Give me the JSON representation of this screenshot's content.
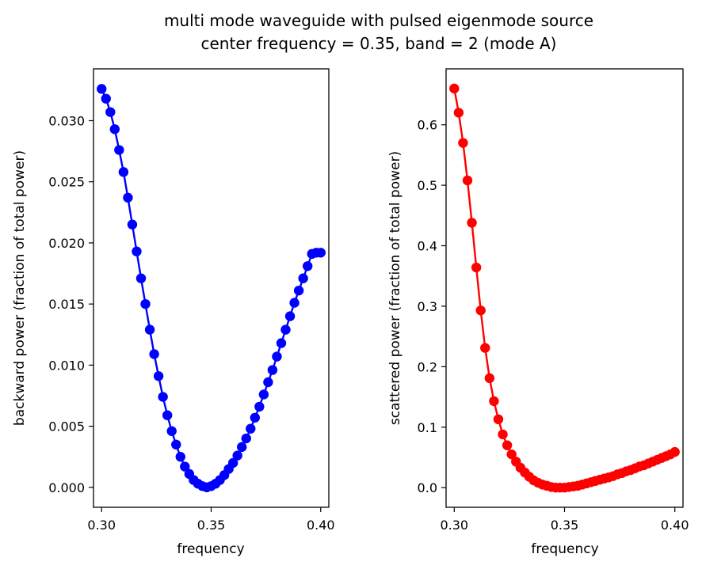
{
  "figure": {
    "title_line1": "multi mode waveguide with pulsed eigenmode source",
    "title_line2": "center frequency = 0.35, band = 2 (mode A)"
  },
  "chart_data": [
    {
      "type": "line",
      "xlabel": "frequency",
      "ylabel": "backward power (fraction of total power)",
      "xlim": [
        0.2963,
        0.4037
      ],
      "ylim": [
        -0.00163,
        0.03424
      ],
      "xticks": [
        "0.30",
        "0.35",
        "0.40"
      ],
      "xtick_values": [
        0.3,
        0.35,
        0.4
      ],
      "yticks": [
        "0.000",
        "0.005",
        "0.010",
        "0.015",
        "0.020",
        "0.025",
        "0.030"
      ],
      "ytick_values": [
        0,
        0.005,
        0.01,
        0.015,
        0.02,
        0.025,
        0.03
      ],
      "grid": false,
      "marker": "circle",
      "color": "#0000ff",
      "x": [
        0.3,
        0.302,
        0.304,
        0.306,
        0.308,
        0.31,
        0.312,
        0.314,
        0.316,
        0.318,
        0.32,
        0.322,
        0.324,
        0.326,
        0.328,
        0.33,
        0.332,
        0.334,
        0.336,
        0.338,
        0.34,
        0.342,
        0.344,
        0.346,
        0.348,
        0.35,
        0.352,
        0.354,
        0.356,
        0.358,
        0.36,
        0.362,
        0.364,
        0.366,
        0.368,
        0.37,
        0.372,
        0.374,
        0.376,
        0.378,
        0.38,
        0.382,
        0.384,
        0.386,
        0.388,
        0.39,
        0.392,
        0.394,
        0.396,
        0.398,
        0.4
      ],
      "y": [
        0.0326,
        0.0318,
        0.0307,
        0.0293,
        0.0276,
        0.0258,
        0.0237,
        0.0215,
        0.0193,
        0.0171,
        0.015,
        0.0129,
        0.0109,
        0.0091,
        0.0074,
        0.0059,
        0.0046,
        0.0035,
        0.0025,
        0.0017,
        0.0011,
        0.0006,
        0.0003,
        0.0001,
        0.0,
        0.0001,
        0.0003,
        0.0006,
        0.001,
        0.0015,
        0.002,
        0.0026,
        0.0033,
        0.004,
        0.0048,
        0.0057,
        0.0066,
        0.0076,
        0.0086,
        0.0096,
        0.0107,
        0.0118,
        0.0129,
        0.014,
        0.0151,
        0.0161,
        0.0171,
        0.0181,
        0.0191,
        0.0192,
        0.0192
      ]
    },
    {
      "type": "line",
      "xlabel": "frequency",
      "ylabel": "scattered power (fraction of total power)",
      "xlim": [
        0.2963,
        0.4037
      ],
      "ylim": [
        -0.0325,
        0.6925
      ],
      "xticks": [
        "0.30",
        "0.35",
        "0.40"
      ],
      "xtick_values": [
        0.3,
        0.35,
        0.4
      ],
      "yticks": [
        "0.0",
        "0.1",
        "0.2",
        "0.3",
        "0.4",
        "0.5",
        "0.6"
      ],
      "ytick_values": [
        0,
        0.1,
        0.2,
        0.3,
        0.4,
        0.5,
        0.6
      ],
      "grid": false,
      "marker": "circle",
      "color": "#ff0000",
      "x": [
        0.3,
        0.302,
        0.304,
        0.306,
        0.308,
        0.31,
        0.312,
        0.314,
        0.316,
        0.318,
        0.32,
        0.322,
        0.324,
        0.326,
        0.328,
        0.33,
        0.332,
        0.334,
        0.336,
        0.338,
        0.34,
        0.342,
        0.344,
        0.346,
        0.348,
        0.35,
        0.352,
        0.354,
        0.356,
        0.358,
        0.36,
        0.362,
        0.364,
        0.366,
        0.368,
        0.37,
        0.372,
        0.374,
        0.376,
        0.378,
        0.38,
        0.382,
        0.384,
        0.386,
        0.388,
        0.39,
        0.392,
        0.394,
        0.396,
        0.398,
        0.4
      ],
      "y": [
        0.66,
        0.62,
        0.57,
        0.508,
        0.438,
        0.364,
        0.293,
        0.231,
        0.181,
        0.143,
        0.113,
        0.088,
        0.07,
        0.055,
        0.043,
        0.033,
        0.025,
        0.018,
        0.012,
        0.008,
        0.005,
        0.003,
        0.001,
        0.0,
        0.0,
        0.0,
        0.001,
        0.002,
        0.003,
        0.005,
        0.007,
        0.009,
        0.011,
        0.013,
        0.015,
        0.017,
        0.019,
        0.022,
        0.024,
        0.027,
        0.029,
        0.032,
        0.035,
        0.037,
        0.04,
        0.043,
        0.046,
        0.049,
        0.052,
        0.055,
        0.059
      ]
    }
  ]
}
